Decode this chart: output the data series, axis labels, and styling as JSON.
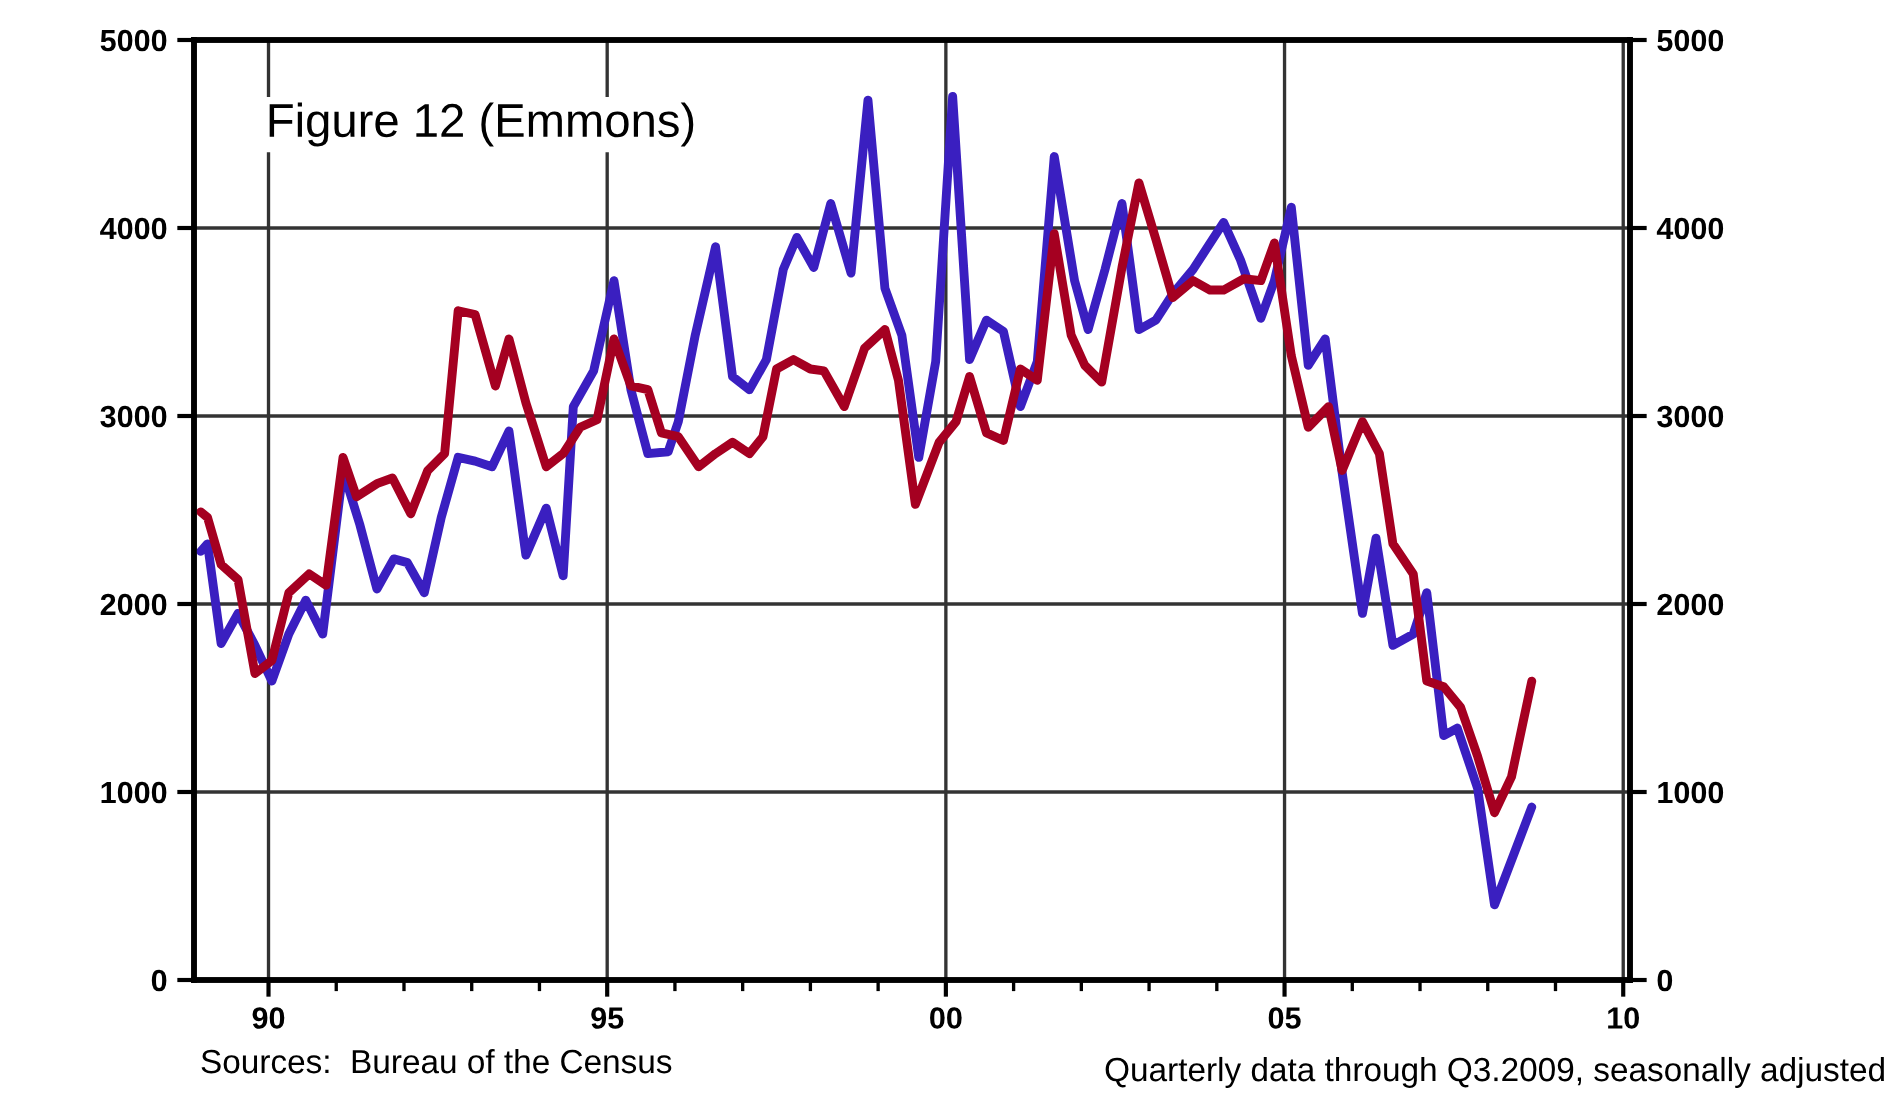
{
  "chart_data": {
    "type": "line",
    "title": "Figure 12 (Emmons)",
    "xlim": [
      1988.9,
      2010.1
    ],
    "xticks": [
      {
        "value": 1990,
        "label": "90"
      },
      {
        "value": 1991,
        "label": null
      },
      {
        "value": 1992,
        "label": null
      },
      {
        "value": 1993,
        "label": null
      },
      {
        "value": 1994,
        "label": null
      },
      {
        "value": 1995,
        "label": "95"
      },
      {
        "value": 1996,
        "label": null
      },
      {
        "value": 1997,
        "label": null
      },
      {
        "value": 1998,
        "label": null
      },
      {
        "value": 1999,
        "label": null
      },
      {
        "value": 2000,
        "label": "00"
      },
      {
        "value": 2001,
        "label": null
      },
      {
        "value": 2002,
        "label": null
      },
      {
        "value": 2003,
        "label": null
      },
      {
        "value": 2004,
        "label": null
      },
      {
        "value": 2005,
        "label": "05"
      },
      {
        "value": 2006,
        "label": null
      },
      {
        "value": 2007,
        "label": null
      },
      {
        "value": 2008,
        "label": null
      },
      {
        "value": 2009,
        "label": null
      },
      {
        "value": 2010,
        "label": "10"
      }
    ],
    "ylim": [
      0,
      5000
    ],
    "yticks": [
      0,
      1000,
      2000,
      3000,
      4000,
      5000
    ],
    "y2lim": [
      0,
      5000
    ],
    "y2ticks": [
      0,
      1000,
      2000,
      3000,
      4000,
      5000
    ],
    "grid": true,
    "line_style": "solid",
    "marker": "none",
    "series": [
      {
        "color": "#3a1fc0",
        "x": [
          1989.0,
          1989.1,
          1989.3,
          1989.55,
          1989.8,
          1990.05,
          1990.3,
          1990.55,
          1990.8,
          1991.1,
          1991.35,
          1991.6,
          1991.85,
          1992.05,
          1992.3,
          1992.55,
          1992.8,
          1993.05,
          1993.3,
          1993.55,
          1993.8,
          1994.1,
          1994.35,
          1994.5,
          1994.8,
          1995.1,
          1995.35,
          1995.6,
          1995.9,
          1996.05,
          1996.3,
          1996.6,
          1996.85,
          1997.1,
          1997.35,
          1997.6,
          1997.8,
          1998.05,
          1998.3,
          1998.6,
          1998.85,
          1999.1,
          1999.35,
          1999.6,
          1999.85,
          2000.1,
          2000.35,
          2000.6,
          2000.85,
          2001.1,
          2001.35,
          2001.6,
          2001.9,
          2002.1,
          2002.35,
          2002.6,
          2002.85,
          2003.1,
          2003.35,
          2003.65,
          2004.1,
          2004.35,
          2004.65,
          2004.85,
          2005.1,
          2005.35,
          2005.6,
          2005.85,
          2006.15,
          2006.35,
          2006.6,
          2006.9,
          2007.1,
          2007.35,
          2007.55,
          2007.85,
          2008.1,
          2008.65
        ],
        "values": [
          2280,
          2320,
          1790,
          1950,
          1780,
          1590,
          1840,
          2020,
          1840,
          2710,
          2420,
          2080,
          2240,
          2220,
          2060,
          2460,
          2780,
          2760,
          2730,
          2920,
          2260,
          2510,
          2150,
          3050,
          3240,
          3720,
          3140,
          2800,
          2810,
          2970,
          3430,
          3900,
          3210,
          3140,
          3300,
          3780,
          3950,
          3790,
          4130,
          3760,
          4680,
          3680,
          3430,
          2780,
          3290,
          4700,
          3300,
          3510,
          3450,
          3050,
          3290,
          4380,
          3720,
          3460,
          3780,
          4130,
          3460,
          3510,
          3650,
          3780,
          4030,
          3830,
          3520,
          3720,
          4110,
          3270,
          3410,
          2700,
          1950,
          2350,
          1780,
          1840,
          2060,
          1300,
          1340,
          1020,
          400,
          920
        ]
      },
      {
        "color": "#a50021",
        "x": [
          1989.0,
          1989.1,
          1989.3,
          1989.55,
          1989.8,
          1990.05,
          1990.3,
          1990.6,
          1990.85,
          1991.1,
          1991.3,
          1991.6,
          1991.83,
          1992.1,
          1992.35,
          1992.6,
          1992.8,
          1993.05,
          1993.35,
          1993.55,
          1993.8,
          1994.1,
          1994.35,
          1994.6,
          1994.85,
          1995.1,
          1995.35,
          1995.6,
          1995.8,
          1996.05,
          1996.35,
          1996.6,
          1996.85,
          1997.1,
          1997.3,
          1997.5,
          1997.75,
          1998.0,
          1998.2,
          1998.5,
          1998.8,
          1999.1,
          1999.3,
          1999.55,
          1999.9,
          2000.15,
          2000.35,
          2000.6,
          2000.85,
          2001.1,
          2001.35,
          2001.6,
          2001.85,
          2002.05,
          2002.3,
          2002.6,
          2002.85,
          2003.1,
          2003.35,
          2003.65,
          2003.9,
          2004.1,
          2004.4,
          2004.65,
          2004.85,
          2005.1,
          2005.35,
          2005.65,
          2005.85,
          2006.15,
          2006.4,
          2006.6,
          2006.9,
          2007.1,
          2007.35,
          2007.6,
          2007.85,
          2008.1,
          2008.35,
          2008.65
        ],
        "values": [
          2490,
          2460,
          2210,
          2130,
          1630,
          1700,
          2060,
          2160,
          2100,
          2780,
          2570,
          2640,
          2670,
          2480,
          2710,
          2800,
          3560,
          3540,
          3160,
          3410,
          3070,
          2730,
          2800,
          2940,
          2980,
          3410,
          3160,
          3140,
          2910,
          2890,
          2730,
          2800,
          2860,
          2800,
          2890,
          3250,
          3300,
          3250,
          3240,
          3050,
          3360,
          3460,
          3190,
          2530,
          2860,
          2970,
          3210,
          2910,
          2870,
          3250,
          3190,
          3970,
          3430,
          3270,
          3180,
          3790,
          4240,
          3940,
          3630,
          3720,
          3670,
          3670,
          3730,
          3720,
          3920,
          3320,
          2940,
          3050,
          2710,
          2970,
          2800,
          2320,
          2160,
          1590,
          1560,
          1450,
          1190,
          890,
          1080,
          1590
        ]
      }
    ],
    "annotations": [
      "Sources:  Bureau of the Census",
      "Quarterly data through Q3.2009, seasonally adjusted"
    ]
  }
}
